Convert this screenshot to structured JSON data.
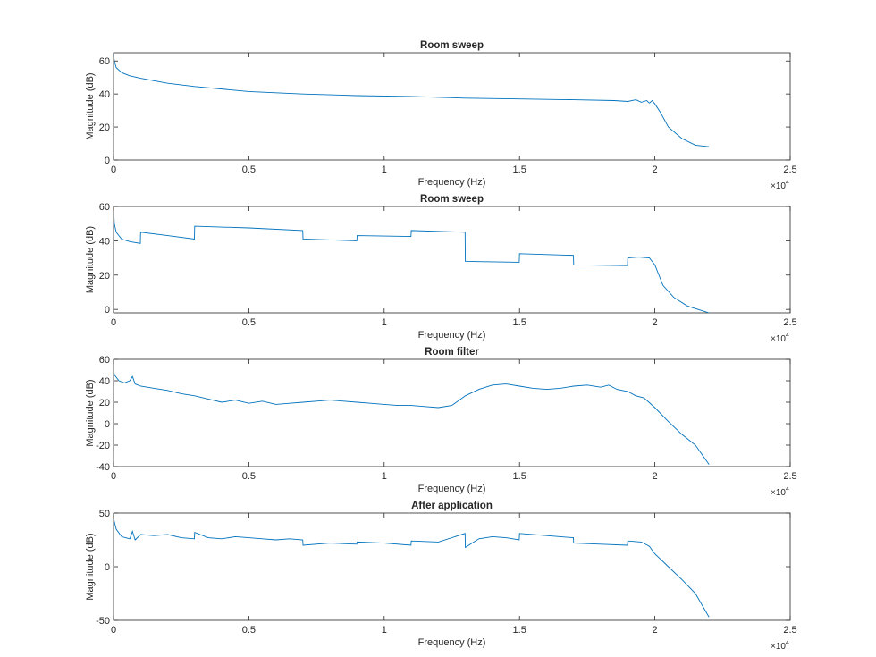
{
  "figure": {
    "background": "#ffffff",
    "axis_color": "#262626",
    "line_color": "#0072BD"
  },
  "chart_data": [
    {
      "type": "line",
      "title": "Room sweep",
      "xlabel": "Frequency (Hz)",
      "ylabel": "Magnitude (dB)",
      "x_exponent_base": "×10",
      "x_exponent": "4",
      "xlim": [
        0,
        25000
      ],
      "ylim": [
        0,
        65
      ],
      "xticks": [
        0,
        5000,
        10000,
        15000,
        20000,
        25000
      ],
      "xtick_labels": [
        "0",
        "0.5",
        "1",
        "1.5",
        "2",
        "2.5"
      ],
      "yticks": [
        0,
        20,
        40,
        60
      ],
      "ytick_labels": [
        "0",
        "20",
        "40",
        "60"
      ],
      "grid": false,
      "series": [
        {
          "x": [
            0,
            30,
            100,
            300,
            600,
            1000,
            2000,
            3000,
            5000,
            7000,
            9000,
            11000,
            13000,
            15000,
            17000,
            18500,
            19000,
            19300,
            19500,
            19700,
            19800,
            19900,
            20000,
            20200,
            20500,
            21000,
            21500,
            22000
          ],
          "y": [
            65,
            60,
            56,
            53,
            51,
            49.5,
            46.5,
            44.5,
            41.5,
            40,
            39,
            38.5,
            37.5,
            37,
            36.5,
            36,
            35.5,
            36.5,
            35,
            36,
            34.5,
            36,
            34,
            29,
            20,
            13,
            9,
            8
          ]
        }
      ]
    },
    {
      "type": "line",
      "title": "Room sweep",
      "xlabel": "Frequency (Hz)",
      "ylabel": "Magnitude (dB)",
      "x_exponent_base": "×10",
      "x_exponent": "4",
      "xlim": [
        0,
        25000
      ],
      "ylim": [
        -2,
        60
      ],
      "xticks": [
        0,
        5000,
        10000,
        15000,
        20000,
        25000
      ],
      "xtick_labels": [
        "0",
        "0.5",
        "1",
        "1.5",
        "2",
        "2.5"
      ],
      "yticks": [
        0,
        20,
        40,
        60
      ],
      "ytick_labels": [
        "0",
        "20",
        "40",
        "60"
      ],
      "grid": false,
      "series": [
        {
          "x": [
            0,
            30,
            100,
            300,
            600,
            990,
            1000,
            2000,
            2990,
            3000,
            5000,
            6990,
            7000,
            8990,
            9000,
            10990,
            11000,
            12990,
            13000,
            14990,
            15000,
            16990,
            17000,
            18990,
            19000,
            19400,
            19800,
            20000,
            20300,
            20700,
            21200,
            21600,
            22000
          ],
          "y": [
            60,
            50,
            45,
            41,
            39.5,
            38.5,
            45,
            43,
            41,
            48.5,
            47.5,
            46,
            41,
            40,
            43,
            42.5,
            46,
            45,
            28,
            27.5,
            32.5,
            31.5,
            26,
            25.5,
            30,
            30.5,
            30,
            26,
            14,
            7,
            2,
            0,
            -2
          ]
        }
      ]
    },
    {
      "type": "line",
      "title": "Room filter",
      "xlabel": "Frequency (Hz)",
      "ylabel": "Magnitude (dB)",
      "x_exponent_base": "×10",
      "x_exponent": "4",
      "xlim": [
        0,
        25000
      ],
      "ylim": [
        -40,
        60
      ],
      "xticks": [
        0,
        5000,
        10000,
        15000,
        20000,
        25000
      ],
      "xtick_labels": [
        "0",
        "0.5",
        "1",
        "1.5",
        "2",
        "2.5"
      ],
      "yticks": [
        -40,
        -20,
        0,
        20,
        40,
        60
      ],
      "ytick_labels": [
        "-40",
        "-20",
        "0",
        "20",
        "40",
        "60"
      ],
      "grid": false,
      "series": [
        {
          "x": [
            0,
            50,
            200,
            400,
            600,
            700,
            800,
            1000,
            1500,
            2000,
            2500,
            3000,
            3500,
            4000,
            4500,
            5000,
            5500,
            6000,
            6500,
            7000,
            7500,
            8000,
            8500,
            9000,
            9500,
            10000,
            10500,
            11000,
            11500,
            12000,
            12500,
            13000,
            13500,
            14000,
            14500,
            15000,
            15500,
            16000,
            16500,
            17000,
            17500,
            18000,
            18300,
            18600,
            19000,
            19300,
            19600,
            20000,
            20500,
            21000,
            21500,
            22000
          ],
          "y": [
            48,
            45,
            40,
            38,
            40,
            44,
            37,
            35,
            33,
            31,
            28,
            26,
            23,
            20,
            22,
            19,
            21,
            18,
            19,
            20,
            21,
            22,
            21,
            20,
            19,
            18,
            17,
            17,
            16,
            15,
            17,
            26,
            32,
            36,
            37,
            35,
            33,
            32,
            33,
            35,
            36,
            34,
            36,
            32,
            30,
            26,
            24,
            15,
            2,
            -10,
            -20,
            -38
          ]
        }
      ]
    },
    {
      "type": "line",
      "title": "After application",
      "xlabel": "Frequency (Hz)",
      "ylabel": "Magnitude (dB)",
      "x_exponent_base": "×10",
      "x_exponent": "4",
      "xlim": [
        0,
        25000
      ],
      "ylim": [
        -50,
        50
      ],
      "xticks": [
        0,
        5000,
        10000,
        15000,
        20000,
        25000
      ],
      "xtick_labels": [
        "0",
        "0.5",
        "1",
        "1.5",
        "2",
        "2.5"
      ],
      "yticks": [
        -50,
        0,
        50
      ],
      "ytick_labels": [
        "-50",
        "0",
        "50"
      ],
      "grid": false,
      "series": [
        {
          "x": [
            0,
            100,
            300,
            600,
            700,
            800,
            1000,
            1500,
            2000,
            2500,
            2990,
            3000,
            3500,
            4000,
            4500,
            5000,
            5500,
            6000,
            6500,
            6990,
            7000,
            8000,
            8990,
            9000,
            10000,
            10990,
            11000,
            12000,
            12990,
            13000,
            13500,
            14000,
            14500,
            14990,
            15000,
            16000,
            16990,
            17000,
            18000,
            18990,
            19000,
            19500,
            19800,
            20000,
            20500,
            21000,
            21500,
            22000
          ],
          "y": [
            45,
            35,
            28,
            26,
            33,
            25,
            30,
            29,
            30,
            27,
            26,
            32,
            27,
            26,
            28,
            27,
            26,
            25,
            26,
            25,
            20,
            22,
            21,
            23,
            22,
            20,
            24,
            23,
            31,
            18,
            26,
            28,
            27,
            25,
            31,
            29,
            27,
            22,
            21,
            20,
            24,
            23,
            19,
            12,
            0,
            -12,
            -25,
            -47
          ]
        }
      ]
    }
  ]
}
